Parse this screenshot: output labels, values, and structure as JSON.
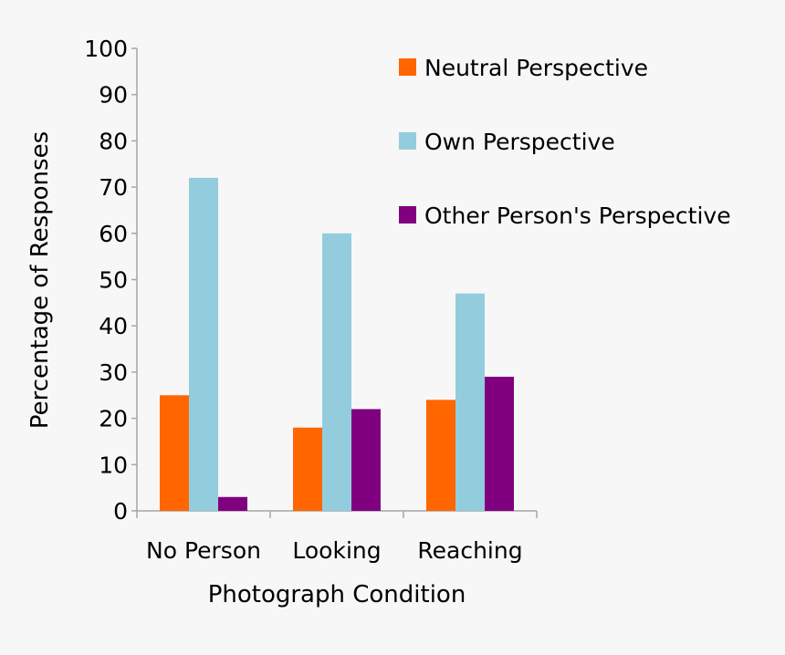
{
  "chart_data": {
    "type": "bar",
    "title": "",
    "xlabel": "Photograph Condition",
    "ylabel": "Percentage of Responses",
    "ylim": [
      0,
      100
    ],
    "yticks": [
      0,
      10,
      20,
      30,
      40,
      50,
      60,
      70,
      80,
      90,
      100
    ],
    "grid": false,
    "legend_placement": "top-right",
    "categories": [
      "No Person",
      "Looking",
      "Reaching"
    ],
    "series": [
      {
        "name": "Neutral Perspective",
        "color": "#ff6600",
        "values": [
          25,
          18,
          24
        ]
      },
      {
        "name": "Own Perspective",
        "color": "#93cddd",
        "values": [
          72,
          60,
          47
        ]
      },
      {
        "name": "Other Person's Perspective",
        "color": "#800080",
        "values": [
          3,
          22,
          29
        ]
      }
    ]
  }
}
